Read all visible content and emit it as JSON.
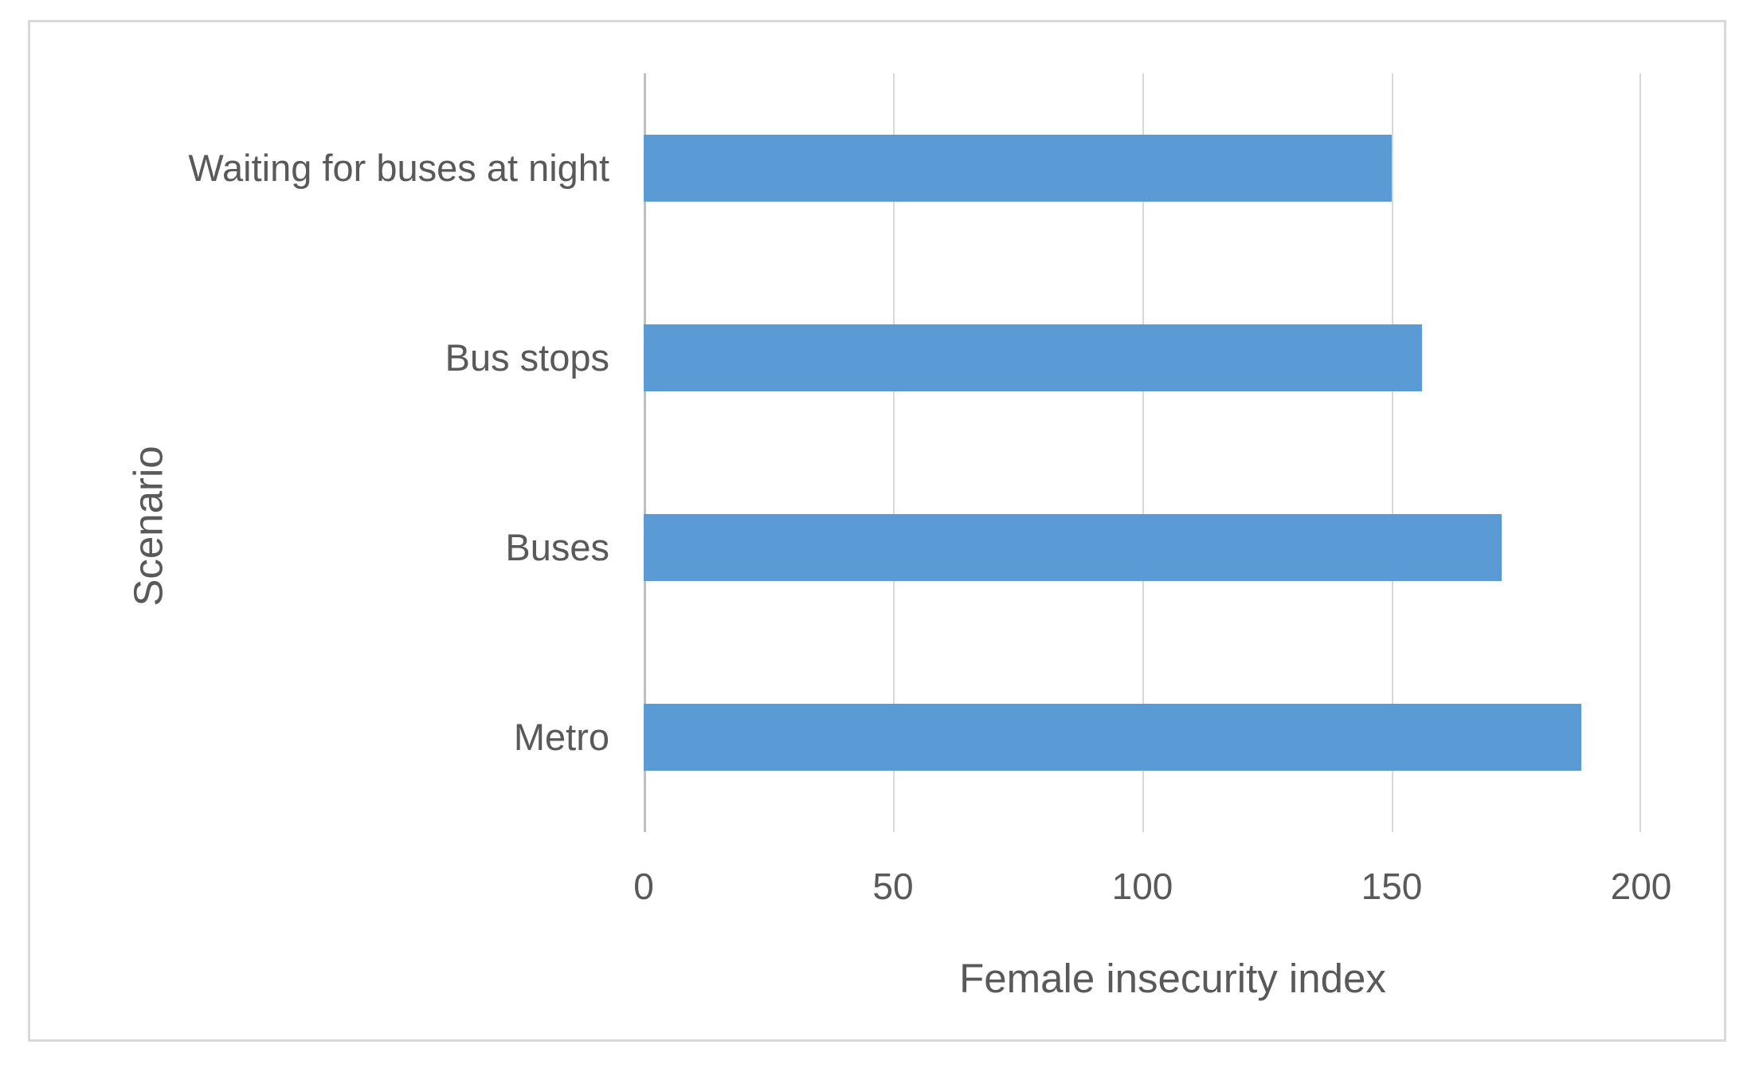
{
  "figure": {
    "background_color": "#ffffff",
    "border_color": "#d9d9d9"
  },
  "chart_data": {
    "type": "bar",
    "orientation": "horizontal",
    "title": "",
    "categories": [
      "Waiting for buses at night",
      "Bus stops",
      "Buses",
      "Metro"
    ],
    "values": [
      150,
      156,
      172,
      188
    ],
    "xlabel": "Female insecurity index",
    "ylabel": "Scenario",
    "xlim": [
      0,
      200
    ],
    "x_ticks": [
      0,
      50,
      100,
      150,
      200
    ],
    "x_tick_labels": [
      "0",
      "50",
      "100",
      "150",
      "200"
    ],
    "grid": true,
    "legend": false,
    "bar_color": "#5b9bd5",
    "gridline_color": "#d9d9d9",
    "axis_line_color": "#c0c0c0",
    "text_color": "#595959"
  }
}
